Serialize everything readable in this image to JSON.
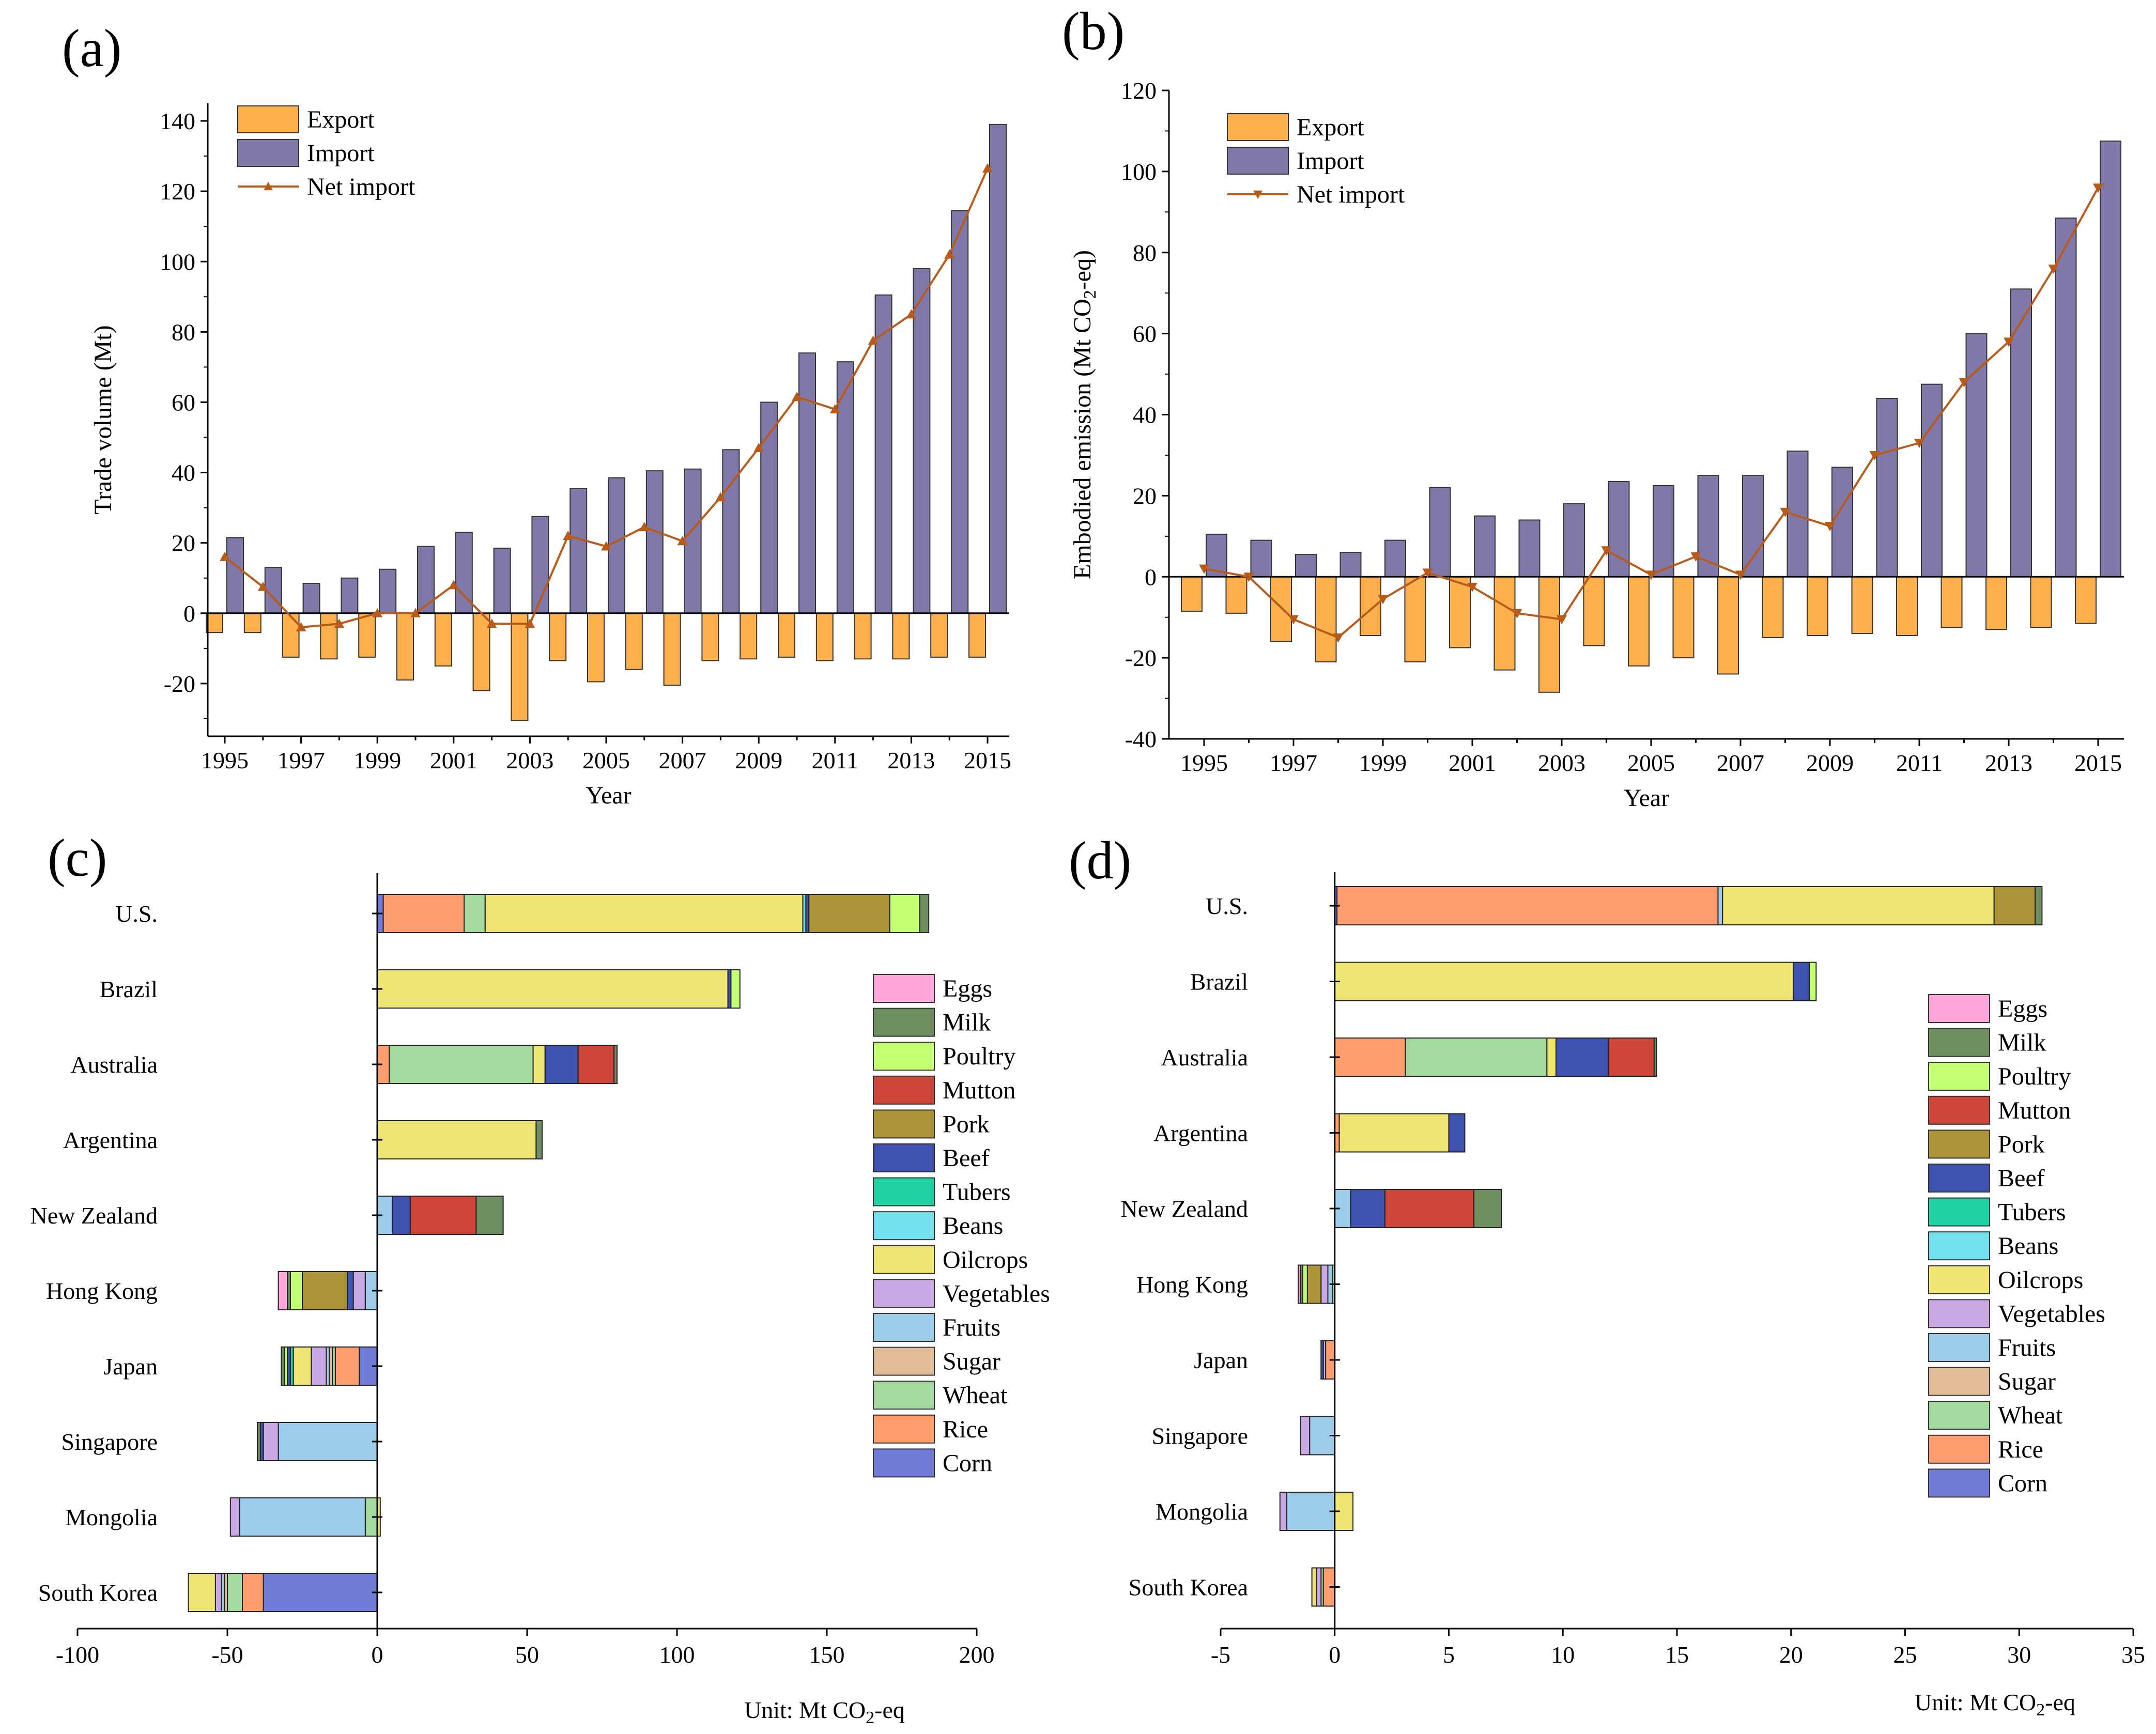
{
  "chart_data": [
    {
      "panel": "(a)",
      "type": "bar",
      "xlabel": "Year",
      "ylabel": "Trade volume (Mt)",
      "ylim": [
        -35,
        145
      ],
      "yticks": [
        -20,
        0,
        20,
        40,
        60,
        80,
        100,
        120,
        140
      ],
      "x": [
        1995,
        1996,
        1997,
        1998,
        1999,
        2000,
        2001,
        2002,
        2003,
        2004,
        2005,
        2006,
        2007,
        2008,
        2009,
        2010,
        2011,
        2012,
        2013,
        2014,
        2015
      ],
      "xtick_labels": [
        "1995",
        "1997",
        "1999",
        "2001",
        "2003",
        "2005",
        "2007",
        "2009",
        "2011",
        "2013",
        "2015"
      ],
      "series": [
        {
          "name": "Export",
          "kind": "bar",
          "color": "#FDB04B",
          "values": [
            -5.5,
            -5.5,
            -12.5,
            -13,
            -12.5,
            -19,
            -15,
            -22,
            -30.5,
            -13.5,
            -19.5,
            -16,
            -20.5,
            -13.5,
            -13,
            -12.5,
            -13.5,
            -13,
            -13,
            -12.5,
            -12.5
          ]
        },
        {
          "name": "Import",
          "kind": "bar",
          "color": "#8078A8",
          "values": [
            21.5,
            13,
            8.5,
            10,
            12.5,
            19,
            23,
            18.5,
            27.5,
            35.5,
            38.5,
            40.5,
            41,
            46.5,
            60,
            74,
            71.5,
            90.5,
            98,
            114.5,
            139
          ]
        },
        {
          "name": "Net import",
          "kind": "line",
          "color": "#B85A1A",
          "marker": "triangle-up",
          "values": [
            16,
            7.5,
            -4,
            -3,
            0,
            0,
            8,
            -3,
            -3,
            22,
            19,
            24.5,
            20.5,
            33,
            47,
            61.5,
            58,
            77.5,
            85,
            102,
            126.5
          ]
        }
      ]
    },
    {
      "panel": "(b)",
      "type": "bar",
      "xlabel": "Year",
      "ylabel_main": "Embodied emission (Mt CO",
      "ylabel_sub": "2",
      "ylabel_end": "-eq)",
      "ylim": [
        -40,
        120
      ],
      "yticks": [
        -40,
        -20,
        0,
        20,
        40,
        60,
        80,
        100,
        120
      ],
      "x": [
        1995,
        1996,
        1997,
        1998,
        1999,
        2000,
        2001,
        2002,
        2003,
        2004,
        2005,
        2006,
        2007,
        2008,
        2009,
        2010,
        2011,
        2012,
        2013,
        2014,
        2015
      ],
      "xtick_labels": [
        "1995",
        "1997",
        "1999",
        "2001",
        "2003",
        "2005",
        "2007",
        "2009",
        "2011",
        "2013",
        "2015"
      ],
      "series": [
        {
          "name": "Export",
          "kind": "bar",
          "color": "#FDB04B",
          "values": [
            -8.5,
            -9,
            -16,
            -21,
            -14.5,
            -21,
            -17.5,
            -23,
            -28.5,
            -17,
            -22,
            -20,
            -24,
            -15,
            -14.5,
            -14,
            -14.5,
            -12.5,
            -13,
            -12.5,
            -11.5
          ]
        },
        {
          "name": "Import",
          "kind": "bar",
          "color": "#8078A8",
          "values": [
            10.5,
            9,
            5.5,
            6,
            9,
            22,
            15,
            14,
            18,
            23.5,
            22.5,
            25,
            25,
            31,
            27,
            44,
            47.5,
            60,
            71,
            88.5,
            107.5
          ]
        },
        {
          "name": "Net import",
          "kind": "line",
          "color": "#B85A1A",
          "marker": "triangle-down",
          "values": [
            2,
            0,
            -10.5,
            -15,
            -5.5,
            1,
            -2.5,
            -9,
            -10.5,
            6.5,
            0.5,
            5,
            0.5,
            16,
            12.5,
            30,
            33,
            48,
            58,
            76,
            96
          ]
        }
      ]
    },
    {
      "panel": "(c)",
      "type": "bar",
      "orientation": "horizontal",
      "stacked": true,
      "xlim": [
        -100,
        200
      ],
      "xticks": [
        -100,
        -50,
        0,
        50,
        100,
        150,
        200
      ],
      "unit_main": "Unit: Mt CO",
      "unit_sub": "2",
      "unit_end": "-eq",
      "categories": [
        "U.S.",
        "Brazil",
        "Australia",
        "Argentina",
        "New Zealand",
        "Hong Kong",
        "Japan",
        "Singapore",
        "Mongolia",
        "South Korea"
      ],
      "stack_order": [
        "Corn",
        "Rice",
        "Wheat",
        "Sugar",
        "Fruits",
        "Vegetables",
        "Oilcrops",
        "Beans",
        "Tubers",
        "Beef",
        "Pork",
        "Mutton",
        "Poultry",
        "Milk",
        "Eggs"
      ],
      "series": [
        {
          "name": "Corn",
          "values": [
            2,
            0,
            0,
            0,
            0,
            0,
            -6,
            0,
            0,
            -38
          ]
        },
        {
          "name": "Rice",
          "values": [
            27,
            0,
            4,
            0,
            0,
            0,
            -8,
            0,
            0,
            -7
          ]
        },
        {
          "name": "Wheat",
          "values": [
            7,
            0,
            48,
            0,
            0,
            0,
            -1,
            0,
            -4,
            -5
          ]
        },
        {
          "name": "Sugar",
          "values": [
            0,
            0,
            0,
            0,
            0,
            0,
            -1,
            0,
            0,
            -1
          ]
        },
        {
          "name": "Fruits",
          "values": [
            0,
            0,
            0,
            0,
            5,
            -4,
            -1,
            -33,
            -42,
            -1
          ]
        },
        {
          "name": "Vegetables",
          "values": [
            0,
            0,
            0,
            0,
            0,
            -4,
            -5,
            -5,
            -3,
            -2
          ]
        },
        {
          "name": "Oilcrops",
          "values": [
            106,
            117,
            4,
            53,
            0,
            0,
            -6,
            0,
            1,
            -9
          ]
        },
        {
          "name": "Beans",
          "values": [
            1,
            0,
            0,
            0,
            0,
            0,
            0,
            0,
            0,
            0
          ]
        },
        {
          "name": "Tubers",
          "values": [
            0,
            0,
            0,
            0,
            0,
            0,
            -1,
            0,
            0,
            0
          ]
        },
        {
          "name": "Beef",
          "values": [
            1,
            1,
            11,
            0,
            6,
            -2,
            -1,
            -1,
            0,
            0
          ]
        },
        {
          "name": "Pork",
          "values": [
            27,
            0,
            0,
            0,
            0,
            -15,
            0,
            0,
            0,
            0
          ]
        },
        {
          "name": "Mutton",
          "values": [
            0,
            0,
            12,
            0,
            22,
            0,
            0,
            0,
            0,
            0
          ]
        },
        {
          "name": "Poultry",
          "values": [
            10,
            3,
            0,
            0,
            0,
            -4,
            -1,
            0,
            0,
            0
          ]
        },
        {
          "name": "Milk",
          "values": [
            3,
            0,
            1,
            2,
            9,
            -1,
            -1,
            -1,
            0,
            0
          ]
        },
        {
          "name": "Eggs",
          "values": [
            0,
            0,
            0,
            0,
            0,
            -3,
            0,
            0,
            0,
            0
          ]
        }
      ]
    },
    {
      "panel": "(d)",
      "type": "bar",
      "orientation": "horizontal",
      "stacked": true,
      "xlim": [
        -5,
        35
      ],
      "xticks": [
        -5,
        0,
        5,
        10,
        15,
        20,
        25,
        30,
        35
      ],
      "unit_main": "Unit: Mt CO",
      "unit_sub": "2",
      "unit_end": "-eq",
      "categories": [
        "U.S.",
        "Brazil",
        "Australia",
        "Argentina",
        "New Zealand",
        "Hong Kong",
        "Japan",
        "Singapore",
        "Mongolia",
        "South Korea"
      ],
      "stack_order": [
        "Corn",
        "Rice",
        "Wheat",
        "Sugar",
        "Fruits",
        "Vegetables",
        "Oilcrops",
        "Beans",
        "Tubers",
        "Beef",
        "Pork",
        "Mutton",
        "Poultry",
        "Milk",
        "Eggs"
      ],
      "series": [
        {
          "name": "Corn",
          "values": [
            0.1,
            0,
            0,
            0,
            0,
            0,
            0,
            0,
            0,
            0
          ]
        },
        {
          "name": "Rice",
          "values": [
            16.7,
            0,
            3.1,
            0.2,
            0,
            0,
            -0.4,
            0,
            0,
            -0.5
          ]
        },
        {
          "name": "Wheat",
          "values": [
            0,
            0,
            6.2,
            0,
            0,
            -0.1,
            0,
            0,
            0,
            -0.1
          ]
        },
        {
          "name": "Sugar",
          "values": [
            0,
            0,
            0,
            0,
            0,
            0,
            0,
            0,
            0,
            0
          ]
        },
        {
          "name": "Fruits",
          "values": [
            0.2,
            0,
            0,
            0,
            0.7,
            -0.2,
            0,
            -1.1,
            -2.1,
            0
          ]
        },
        {
          "name": "Vegetables",
          "values": [
            0,
            0,
            0,
            0,
            0,
            -0.3,
            -0.1,
            -0.4,
            -0.3,
            -0.2
          ]
        },
        {
          "name": "Oilcrops",
          "values": [
            11.9,
            20.1,
            0.4,
            4.8,
            0,
            0,
            0,
            0,
            0.8,
            -0.2
          ]
        },
        {
          "name": "Beans",
          "values": [
            0,
            0,
            0,
            0,
            0,
            0,
            0,
            0,
            0,
            0
          ]
        },
        {
          "name": "Tubers",
          "values": [
            0,
            0,
            0,
            0,
            0,
            0,
            0,
            0,
            0,
            0
          ]
        },
        {
          "name": "Beef",
          "values": [
            0,
            0.7,
            2.3,
            0.7,
            1.5,
            0,
            -0.1,
            0,
            0,
            0
          ]
        },
        {
          "name": "Pork",
          "values": [
            1.8,
            0,
            0,
            0,
            0,
            -0.6,
            0,
            0,
            0,
            0
          ]
        },
        {
          "name": "Mutton",
          "values": [
            0,
            0,
            2,
            0,
            3.9,
            0,
            0,
            0,
            0,
            0
          ]
        },
        {
          "name": "Poultry",
          "values": [
            0,
            0.3,
            0,
            0,
            0,
            -0.2,
            0,
            0,
            0,
            0
          ]
        },
        {
          "name": "Milk",
          "values": [
            0.3,
            0,
            0.1,
            0,
            1.2,
            -0.1,
            0,
            0,
            0,
            0
          ]
        },
        {
          "name": "Eggs",
          "values": [
            0,
            0,
            0,
            0,
            0,
            -0.1,
            0,
            0,
            0,
            0
          ]
        }
      ]
    }
  ],
  "commodity_legend": [
    {
      "name": "Eggs",
      "color": "#FFA6DA"
    },
    {
      "name": "Milk",
      "color": "#6E8F60"
    },
    {
      "name": "Poultry",
      "color": "#C3FF72"
    },
    {
      "name": "Mutton",
      "color": "#CC4538"
    },
    {
      "name": "Pork",
      "color": "#AE9438"
    },
    {
      "name": "Beef",
      "color": "#3F52B0"
    },
    {
      "name": "Tubers",
      "color": "#20D3A3"
    },
    {
      "name": "Beans",
      "color": "#73E0EE"
    },
    {
      "name": "Oilcrops",
      "color": "#EEE572"
    },
    {
      "name": "Vegetables",
      "color": "#C9A8E4"
    },
    {
      "name": "Fruits",
      "color": "#9DCCEB"
    },
    {
      "name": "Sugar",
      "color": "#E2BC98"
    },
    {
      "name": "Wheat",
      "color": "#A4DAA0"
    },
    {
      "name": "Rice",
      "color": "#FE9D6E"
    },
    {
      "name": "Corn",
      "color": "#717CD8"
    }
  ]
}
